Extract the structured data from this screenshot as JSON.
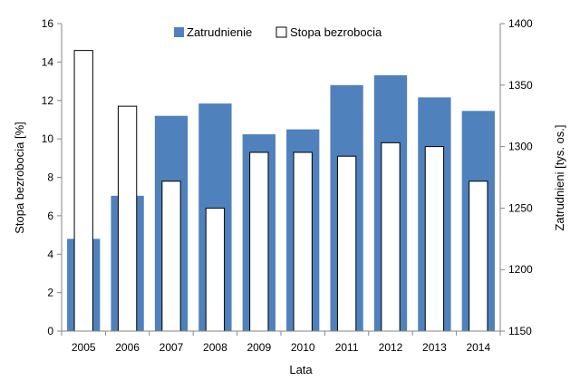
{
  "chart_data": {
    "type": "bar",
    "categories": [
      "2005",
      "2006",
      "2007",
      "2008",
      "2009",
      "2010",
      "2011",
      "2012",
      "2013",
      "2014"
    ],
    "series": [
      {
        "name": "Zatrudnienie",
        "axis": "right",
        "color": "#4f81bd",
        "values": [
          1225,
          1260,
          1325,
          1335,
          1310,
          1314,
          1350,
          1358,
          1340,
          1329
        ]
      },
      {
        "name": "Stopa bezrobocia",
        "axis": "left",
        "color": "#ffffff",
        "stroke": "#000000",
        "values": [
          14.6,
          11.7,
          7.8,
          6.4,
          9.3,
          9.3,
          9.1,
          9.8,
          9.6,
          7.8
        ]
      }
    ],
    "xlabel": "Lata",
    "ylabel_left": "Stopa bezrobocia [%]",
    "ylabel_right": "Zatrudnieni [tys. os.]",
    "ylim_left": [
      0,
      16
    ],
    "yticks_left": [
      0,
      2,
      4,
      6,
      8,
      10,
      12,
      14,
      16
    ],
    "ylim_right": [
      1150,
      1400
    ],
    "yticks_right": [
      1150,
      1200,
      1250,
      1300,
      1350,
      1400
    ],
    "legend_position": "top-center",
    "grid": false
  }
}
